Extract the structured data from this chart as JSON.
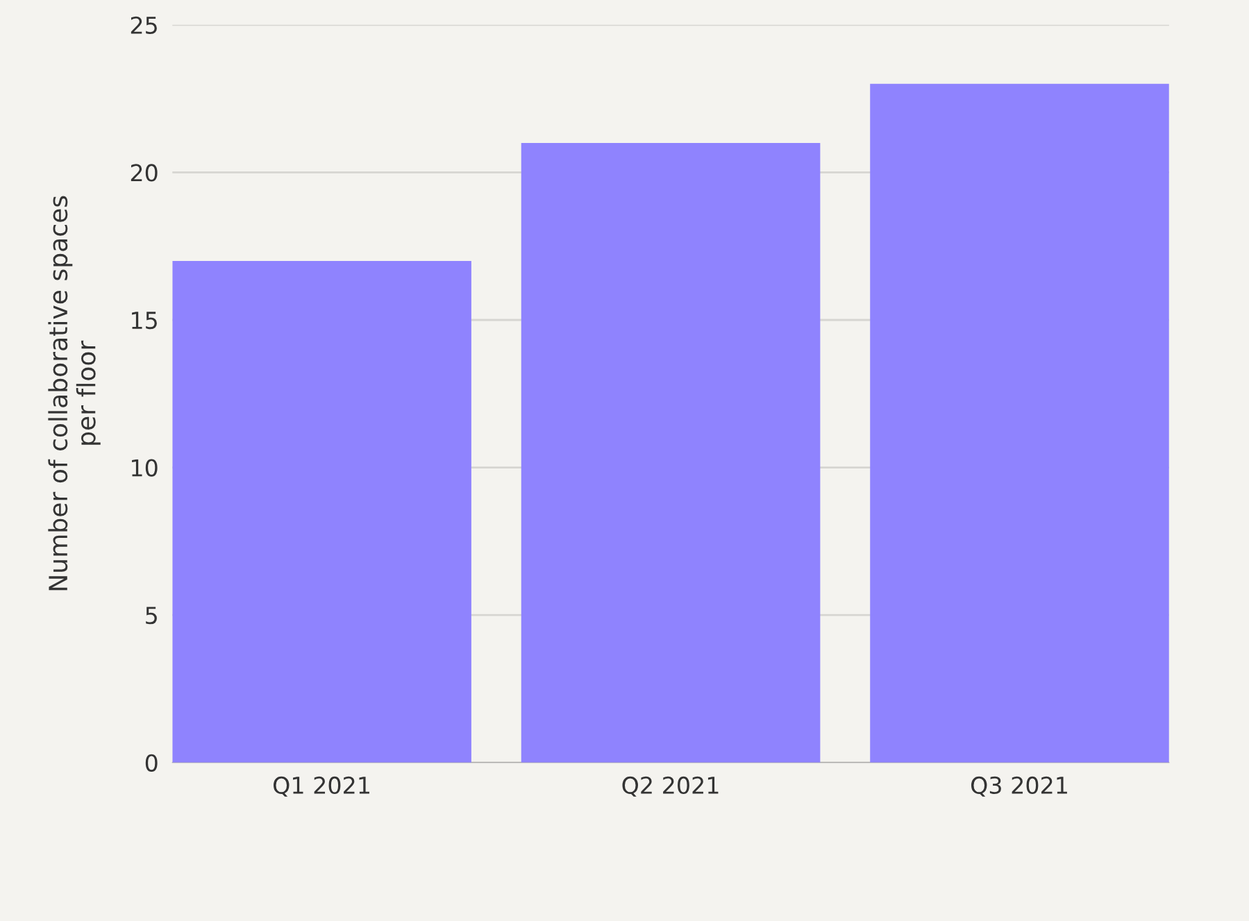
{
  "chart_data": {
    "type": "bar",
    "ylabel": "Number of collaborative spaces\nper floor",
    "categories": [
      "Q1 2021",
      "Q2 2021",
      "Q3 2021"
    ],
    "values": [
      17,
      21,
      23
    ],
    "color": "#8f83fe",
    "ylim": [
      0,
      25
    ],
    "yticks": [
      0,
      5,
      10,
      15,
      20,
      25
    ],
    "grid": "y"
  }
}
